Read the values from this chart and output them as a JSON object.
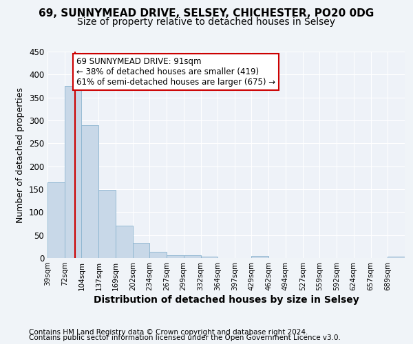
{
  "title1": "69, SUNNYMEAD DRIVE, SELSEY, CHICHESTER, PO20 0DG",
  "title2": "Size of property relative to detached houses in Selsey",
  "xlabel": "Distribution of detached houses by size in Selsey",
  "ylabel": "Number of detached properties",
  "footer1": "Contains HM Land Registry data © Crown copyright and database right 2024.",
  "footer2": "Contains public sector information licensed under the Open Government Licence v3.0.",
  "bin_labels": [
    "39sqm",
    "72sqm",
    "104sqm",
    "137sqm",
    "169sqm",
    "202sqm",
    "234sqm",
    "267sqm",
    "299sqm",
    "332sqm",
    "364sqm",
    "397sqm",
    "429sqm",
    "462sqm",
    "494sqm",
    "527sqm",
    "559sqm",
    "592sqm",
    "624sqm",
    "657sqm",
    "689sqm"
  ],
  "bin_edges": [
    39,
    72,
    104,
    137,
    169,
    202,
    234,
    267,
    299,
    332,
    364,
    397,
    429,
    462,
    494,
    527,
    559,
    592,
    624,
    657,
    689,
    722
  ],
  "bar_heights": [
    165,
    375,
    290,
    148,
    70,
    33,
    13,
    6,
    6,
    3,
    0,
    0,
    5,
    0,
    0,
    0,
    0,
    0,
    0,
    0,
    3
  ],
  "bar_color": "#c8d8e8",
  "bar_edge_color": "#8ab4cf",
  "property_size": 91,
  "vline_color": "#cc0000",
  "annotation_text": "69 SUNNYMEAD DRIVE: 91sqm\n← 38% of detached houses are smaller (419)\n61% of semi-detached houses are larger (675) →",
  "annotation_box_color": "#ffffff",
  "annotation_box_edge": "#cc0000",
  "ylim": [
    0,
    450
  ],
  "background_color": "#f0f4f8",
  "plot_bg_color": "#eef2f8",
  "grid_color": "#ffffff",
  "title1_fontsize": 11,
  "title2_fontsize": 10,
  "xlabel_fontsize": 10,
  "ylabel_fontsize": 9,
  "footer_fontsize": 7.5,
  "annotation_fontsize": 8.5,
  "yticks": [
    0,
    50,
    100,
    150,
    200,
    250,
    300,
    350,
    400,
    450
  ]
}
